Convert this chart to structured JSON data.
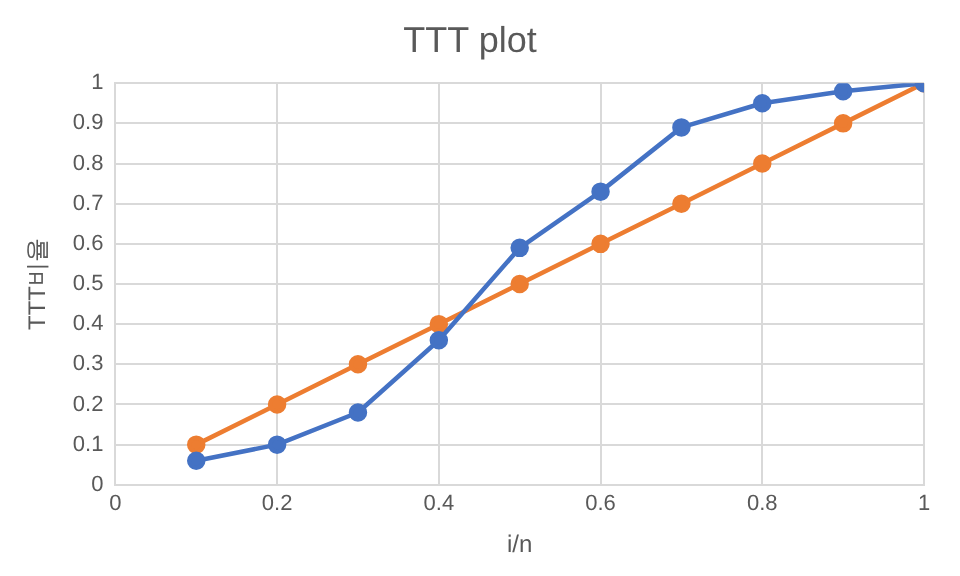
{
  "chart_data": {
    "type": "line",
    "title": "TTT plot",
    "xlabel": "i/n",
    "ylabel": "TTT비율",
    "x": [
      0.1,
      0.2,
      0.3,
      0.4,
      0.5,
      0.6,
      0.7,
      0.8,
      0.9,
      1
    ],
    "series": [
      {
        "color": "#4472c4",
        "values": [
          0.06,
          0.1,
          0.18,
          0.36,
          0.59,
          0.73,
          0.89,
          0.95,
          0.98,
          1
        ]
      },
      {
        "color": "#ed7d31",
        "values": [
          0.1,
          0.2,
          0.3,
          0.4,
          0.5,
          0.6,
          0.7,
          0.8,
          0.9,
          1
        ]
      }
    ],
    "xlim": [
      0,
      1
    ],
    "xticks": [
      0,
      0.2,
      0.4,
      0.6,
      0.8,
      1
    ],
    "ylim": [
      0,
      1
    ],
    "yticks": [
      0,
      0.1,
      0.2,
      0.3,
      0.4,
      0.5,
      0.6,
      0.7,
      0.8,
      0.9,
      1
    ],
    "grid": true,
    "marker": "circle",
    "line_style": "solid",
    "legend": false
  }
}
